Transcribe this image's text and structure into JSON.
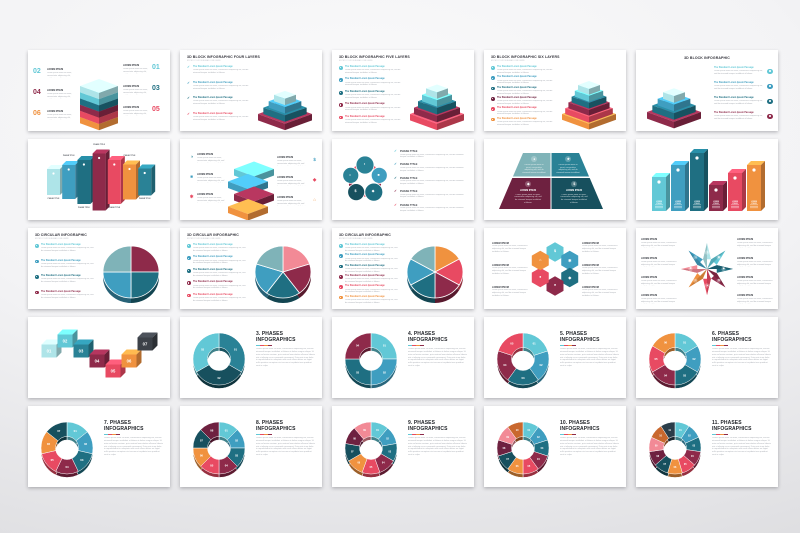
{
  "canvas": {
    "bg_inner": "#fafafb",
    "bg_outer": "#dcdcdf",
    "slide_bg": "#ffffff"
  },
  "palette": {
    "cyan_light": "#aee4e8",
    "cyan": "#62c8d6",
    "blue": "#3f9ec0",
    "teal": "#2a8296",
    "teal_dark": "#1f6f82",
    "teal_deep": "#17505e",
    "maroon": "#8e2a4a",
    "maroon_dark": "#6e2140",
    "red": "#e84a62",
    "pink": "#f28a96",
    "orange": "#f0923f",
    "orange_dark": "#c9682e",
    "gray_dark": "#3c4148",
    "slate": "#2b3e4a",
    "gray_teal": "#7fb3b8"
  },
  "icons": {
    "check": "✓",
    "money": "$",
    "home": "⌂",
    "star": "★",
    "gear": "✱",
    "tag": "◆",
    "chart": "◑",
    "briefcase": "■",
    "person": "●",
    "clock": "●",
    "lock": "●",
    "info": "i",
    "dot": "●"
  },
  "strings": {
    "lorem_label": "LOREM IPSUM",
    "phase_title": "PHASE TITLE",
    "item_heading": "The Standard Lorem Ipsum Passage",
    "subhead": "ENTER YOUR SUBHEAD LINE HERE",
    "tiny_text": "Lorem ipsum dolor sit amet, consectetur adipiscing elit, sed do eiusmod tempor incididunt ut labore.",
    "para_text": "Lorem ipsum dolor sit amet, consectetur adipiscing elit, sed do eiusmod tempor incididunt ut labore et dolore magna aliqua. Ut enim ad minim veniam, quis nostrud exercitation ullamco laboris nisi ut aliquip ex ea commodo consequat. Duis aute irure dolor in reprehenderit in voluptate velit esse cillum dolore eu fugiat nulla pariatur excepteur sint occaecat cupidatat non proident sunt in culpa."
  },
  "slides": [
    {
      "name": "slide-3d-block-six-layers-numbered",
      "type": "stack_numbers",
      "layers": [
        "cyan_light",
        "cyan",
        "teal_dark",
        "maroon",
        "red",
        "orange"
      ],
      "left": [
        {
          "num": "02",
          "color": "cyan"
        },
        {
          "num": "04",
          "color": "maroon"
        },
        {
          "num": "06",
          "color": "orange"
        }
      ],
      "right": [
        {
          "num": "01",
          "color": "cyan"
        },
        {
          "num": "03",
          "color": "teal_dark"
        },
        {
          "num": "05",
          "color": "red"
        }
      ]
    },
    {
      "name": "slide-3d-block-four-layers",
      "type": "block_layers",
      "title": "3D BLOCK INFOGRAPHIC FOUR LAYERS",
      "bullet": "check",
      "items": [
        "cyan",
        "blue",
        "teal_dark",
        "red"
      ],
      "pyramid": [
        "cyan_light",
        "blue",
        "teal_dark",
        "maroon"
      ]
    },
    {
      "name": "slide-3d-block-five-layers",
      "type": "block_layers",
      "title": "3D BLOCK INFOGRAPHIC FIVE LAYERS",
      "bullet": "circle",
      "items": [
        "cyan",
        "blue",
        "teal_dark",
        "maroon",
        "red"
      ],
      "pyramid": [
        "cyan_light",
        "cyan",
        "teal_dark",
        "maroon",
        "red"
      ]
    },
    {
      "name": "slide-3d-block-six-layers",
      "type": "block_layers",
      "title": "3D BLOCK INFOGRAPHIC SIX LAYERS",
      "bullet": "circle",
      "items": [
        "cyan",
        "blue",
        "teal_dark",
        "maroon_dark",
        "red",
        "orange"
      ],
      "pyramid": [
        "cyan_light",
        "cyan",
        "teal_dark",
        "maroon",
        "red",
        "orange"
      ]
    },
    {
      "name": "slide-3d-block-infographic",
      "type": "block_layers_right",
      "title": "3D BLOCK INFOGRAPHIC",
      "items": [
        "cyan",
        "blue",
        "teal_dark",
        "maroon"
      ],
      "pyramid": [
        "cyan_light",
        "blue",
        "teal_dark",
        "maroon"
      ]
    },
    {
      "name": "slide-3d-columns-seven-phases",
      "type": "columns",
      "cols": [
        {
          "color": "cyan_light",
          "h": 26
        },
        {
          "color": "blue",
          "h": 34
        },
        {
          "color": "teal_dark",
          "h": 44
        },
        {
          "color": "maroon",
          "h": 57
        },
        {
          "color": "red",
          "h": 44
        },
        {
          "color": "orange",
          "h": 35
        },
        {
          "color": "teal",
          "h": 27
        }
      ]
    },
    {
      "name": "slide-3d-stack-with-icons",
      "type": "stack_icons",
      "layers": [
        "cyan",
        "blue",
        "maroon",
        "orange"
      ],
      "left": [
        {
          "icon": "chart",
          "color": "teal"
        },
        {
          "icon": "briefcase",
          "color": "blue"
        },
        {
          "icon": "gear",
          "color": "red"
        }
      ],
      "right": [
        {
          "icon": "money",
          "color": "blue"
        },
        {
          "icon": "tag",
          "color": "red"
        },
        {
          "icon": "home",
          "color": "orange"
        }
      ]
    },
    {
      "name": "slide-circle-ring-five-phases",
      "type": "ring",
      "circles": [
        {
          "icon": "chart",
          "color": "teal"
        },
        {
          "icon": "briefcase",
          "color": "blue"
        },
        {
          "icon": "tag",
          "color": "teal_dark"
        },
        {
          "icon": "money",
          "color": "teal_deep"
        },
        {
          "icon": "home",
          "color": "teal"
        }
      ],
      "items": [
        "cyan",
        "blue",
        "teal_dark",
        "maroon",
        "red"
      ]
    },
    {
      "name": "slide-trapezoid-four-panels",
      "type": "trapezoid",
      "panels": [
        {
          "icon": "lock",
          "color": "gray_teal"
        },
        {
          "icon": "star",
          "color": "teal"
        },
        {
          "icon": "tag",
          "color": "maroon_dark"
        },
        {
          "icon": "money",
          "color": "teal_deep"
        }
      ]
    },
    {
      "name": "slide-3d-bars-six",
      "type": "bars",
      "bars": [
        {
          "color": "cyan",
          "h": 34
        },
        {
          "color": "blue",
          "h": 46
        },
        {
          "color": "teal_dark",
          "h": 58
        },
        {
          "color": "maroon",
          "h": 26
        },
        {
          "color": "red",
          "h": 38
        },
        {
          "color": "orange",
          "h": 46
        }
      ]
    },
    {
      "name": "slide-3d-circular-four",
      "type": "circular",
      "title": "3D CIRCULAR INFOGRAPHIC",
      "items": [
        "cyan",
        "blue",
        "teal_dark",
        "maroon"
      ],
      "slices": [
        "maroon",
        "teal_dark",
        "blue",
        "gray_teal"
      ]
    },
    {
      "name": "slide-3d-circular-five",
      "type": "circular",
      "title": "3D CIRCULAR INFOGRAPHIC",
      "items": [
        "cyan",
        "blue",
        "teal_dark",
        "maroon",
        "red"
      ],
      "slices": [
        "pink",
        "maroon",
        "teal_dark",
        "blue",
        "gray_teal"
      ]
    },
    {
      "name": "slide-3d-circular-six",
      "type": "circular",
      "title": "3D CIRCULAR INFOGRAPHIC",
      "items": [
        "cyan",
        "blue",
        "teal_dark",
        "maroon",
        "red",
        "orange"
      ],
      "slices": [
        "orange",
        "red",
        "maroon",
        "teal_dark",
        "blue",
        "gray_teal"
      ]
    },
    {
      "name": "slide-hexagon-flower",
      "type": "hexflower",
      "hexes": [
        {
          "icon": "money",
          "color": "cyan"
        },
        {
          "icon": "gear",
          "color": "blue"
        },
        {
          "icon": "tag",
          "color": "teal_dark"
        },
        {
          "icon": "clock",
          "color": "maroon"
        },
        {
          "icon": "person",
          "color": "red"
        },
        {
          "icon": "home",
          "color": "orange"
        }
      ]
    },
    {
      "name": "slide-star-eight-petals",
      "type": "star8",
      "petals": [
        "cyan_light",
        "cyan",
        "teal_dark",
        "maroon",
        "red",
        "orange",
        "pink",
        "blue"
      ],
      "petal_icons": [
        "info",
        "gear",
        "tag",
        "money",
        "person",
        "home",
        "gear",
        "chart"
      ]
    },
    {
      "name": "slide-3d-cubes-seven",
      "type": "cubes",
      "cubes": [
        {
          "num": "01",
          "color": "cyan_light"
        },
        {
          "num": "02",
          "color": "cyan"
        },
        {
          "num": "03",
          "color": "teal"
        },
        {
          "num": "04",
          "color": "maroon"
        },
        {
          "num": "05",
          "color": "red"
        },
        {
          "num": "06",
          "color": "orange"
        },
        {
          "num": "07",
          "color": "gray_dark"
        }
      ]
    },
    {
      "name": "slide-3-phases",
      "type": "donut",
      "title": "3. PHASES INFOGRAPHICS",
      "numbers": [
        "01",
        "02",
        "03"
      ],
      "colors": [
        "teal",
        "teal_deep",
        "cyan"
      ]
    },
    {
      "name": "slide-4-phases",
      "type": "donut",
      "title": "4. PHASES INFOGRAPHICS",
      "numbers": [
        "01",
        "02",
        "03",
        "04"
      ],
      "colors": [
        "cyan",
        "blue",
        "teal_dark",
        "maroon"
      ]
    },
    {
      "name": "slide-5-phases",
      "type": "donut",
      "title": "5. PHASES INFOGRAPHICS",
      "numbers": [
        "01",
        "02",
        "03",
        "04",
        "05"
      ],
      "colors": [
        "cyan",
        "blue",
        "teal_dark",
        "maroon",
        "red"
      ]
    },
    {
      "name": "slide-6-phases",
      "type": "donut",
      "title": "6. PHASES INFOGRAPHICS",
      "numbers": [
        "01",
        "02",
        "03",
        "04",
        "05",
        "06"
      ],
      "colors": [
        "cyan",
        "blue",
        "teal_dark",
        "maroon",
        "red",
        "orange"
      ]
    },
    {
      "name": "slide-7-phases",
      "type": "donut",
      "title": "7. PHASES INFOGRAPHICS",
      "numbers": [
        "01",
        "02",
        "03",
        "04",
        "05",
        "06",
        "07"
      ],
      "colors": [
        "cyan",
        "blue",
        "teal_dark",
        "maroon",
        "red",
        "orange",
        "teal_deep"
      ]
    },
    {
      "name": "slide-8-phases",
      "type": "donut",
      "title": "8. PHASES INFOGRAPHICS",
      "numbers": [
        "01",
        "02",
        "03",
        "04",
        "05",
        "06",
        "07",
        "08"
      ],
      "colors": [
        "cyan",
        "blue",
        "teal_dark",
        "maroon",
        "red",
        "orange",
        "teal_deep",
        "maroon_dark"
      ]
    },
    {
      "name": "slide-9-phases",
      "type": "donut",
      "title": "9. PHASES INFOGRAPHICS",
      "numbers": [
        "01",
        "02",
        "03",
        "04",
        "05",
        "06",
        "07",
        "08",
        "09"
      ],
      "colors": [
        "cyan",
        "blue",
        "teal_dark",
        "maroon",
        "red",
        "orange",
        "teal_deep",
        "maroon_dark",
        "pink"
      ]
    },
    {
      "name": "slide-10-phases",
      "type": "donut",
      "title": "10. PHASES INFOGRAPHICS",
      "numbers": [
        "01",
        "02",
        "03",
        "04",
        "05",
        "06",
        "07",
        "08",
        "09",
        "10"
      ],
      "colors": [
        "cyan",
        "blue",
        "teal_dark",
        "maroon",
        "red",
        "orange",
        "teal_deep",
        "maroon_dark",
        "pink",
        "orange_dark"
      ]
    },
    {
      "name": "slide-11-phases",
      "type": "donut",
      "title": "11. PHASES INFOGRAPHICS",
      "numbers": [
        "01",
        "02",
        "03",
        "04",
        "05",
        "06",
        "07",
        "08",
        "09",
        "10",
        "11"
      ],
      "colors": [
        "cyan",
        "blue",
        "teal_dark",
        "maroon",
        "red",
        "orange",
        "teal_deep",
        "maroon_dark",
        "pink",
        "orange_dark",
        "slate"
      ]
    }
  ]
}
